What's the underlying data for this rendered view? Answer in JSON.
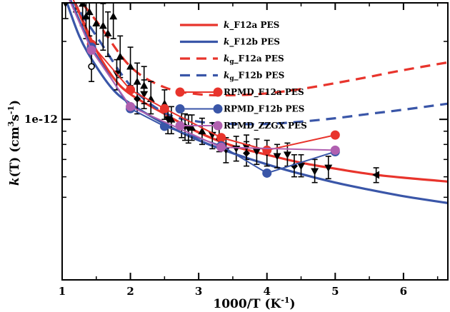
{
  "chart_data": {
    "type": "line",
    "xlabel": "1000/T (K",
    "xlabel_sup": "-1",
    "xlabel_end": ")",
    "ylabel": "k(T) (cm",
    "ylabel_sup1": "3",
    "ylabel_mid": "s",
    "ylabel_sup2": "-1",
    "ylabel_end": ")",
    "xlim": [
      1,
      6.65
    ],
    "x_ticks": [
      1,
      2,
      3,
      4,
      5,
      6
    ],
    "y_tick_labels": [
      {
        "y": 1e-12,
        "label": "1e-12"
      }
    ],
    "ylim_log10": [
      -12.62,
      -11.55
    ],
    "y_scale": "log",
    "colors": {
      "red": "#e8342c",
      "blue": "#3a56a8",
      "purple": "#b060b0",
      "black": "#000000"
    },
    "legend": [
      {
        "id": "kF12a",
        "kind": "solid",
        "color": "#e8342c",
        "prefix": "k",
        "rest": "_F12a PES"
      },
      {
        "id": "kF12b",
        "kind": "solid",
        "color": "#3a56a8",
        "prefix": "k",
        "rest": "_F12b PES"
      },
      {
        "id": "kgF12a",
        "kind": "dash",
        "color": "#e8342c",
        "prefix": "k",
        "sub": "g",
        "rest": "_F12a PES"
      },
      {
        "id": "kgF12b",
        "kind": "dash",
        "color": "#3a56a8",
        "prefix": "k",
        "sub": "g",
        "rest": "_F12b PES"
      },
      {
        "id": "rpF12a",
        "kind": "marker",
        "color": "#e8342c",
        "label": "RPMD_F12a PES"
      },
      {
        "id": "rpF12b",
        "kind": "marker",
        "color": "#3a56a8",
        "label": "RPMD_F12b PES"
      },
      {
        "id": "rpZZGX",
        "kind": "marker",
        "color": "#b060b0",
        "label": "RPMD_ZZGX PES"
      }
    ],
    "series": [
      {
        "id": "kF12a",
        "style": "solid",
        "color": "#e8342c",
        "x": [
          1.0,
          1.25,
          1.5,
          1.75,
          2.0,
          2.5,
          3.0,
          3.5,
          4.0,
          4.5,
          5.0,
          5.5,
          6.0,
          6.65
        ],
        "y": [
          3.7e-12,
          2.6e-12,
          1.85e-12,
          1.45e-12,
          1.25e-12,
          1.05e-12,
          8.9e-13,
          7.9e-13,
          7.3e-13,
          6.8e-13,
          6.45e-13,
          6.15e-13,
          5.95e-13,
          5.75e-13
        ]
      },
      {
        "id": "kF12b",
        "style": "solid",
        "color": "#3a56a8",
        "x": [
          1.0,
          1.25,
          1.5,
          1.75,
          2.0,
          2.5,
          3.0,
          3.5,
          4.0,
          4.5,
          5.0,
          5.5,
          6.0,
          6.65
        ],
        "y": [
          3.2e-12,
          2.1e-12,
          1.6e-12,
          1.3e-12,
          1.15e-12,
          9.6e-13,
          8.3e-13,
          7.4e-13,
          6.7e-13,
          6.15e-13,
          5.7e-13,
          5.35e-13,
          5.05e-13,
          4.75e-13
        ]
      },
      {
        "id": "kgF12a",
        "style": "dash",
        "color": "#e8342c",
        "x": [
          1.0,
          1.5,
          2.0,
          2.5,
          3.0,
          3.5,
          4.0,
          4.5,
          5.0,
          5.5,
          6.0,
          6.65
        ],
        "y": [
          3.5e-12,
          2.4e-12,
          1.6e-12,
          1.33e-12,
          1.25e-12,
          1.24e-12,
          1.26e-12,
          1.31e-12,
          1.38e-12,
          1.46e-12,
          1.55e-12,
          1.66e-12
        ]
      },
      {
        "id": "kgF12b",
        "style": "dash",
        "color": "#3a56a8",
        "x": [
          1.0,
          1.5,
          2.0,
          2.5,
          3.0,
          3.5,
          4.0,
          4.5,
          5.0,
          5.5,
          6.0,
          6.65
        ],
        "y": [
          3.3e-12,
          2.1e-12,
          1.35e-12,
          1.06e-12,
          9.8e-13,
          9.6e-13,
          9.6e-13,
          9.8e-13,
          1.01e-12,
          1.05e-12,
          1.09e-12,
          1.15e-12
        ]
      },
      {
        "id": "rpF12a",
        "style": "marker",
        "color": "#e8342c",
        "x": [
          1.0,
          1.43,
          2.0,
          2.5,
          3.33,
          4.0,
          5.0
        ],
        "y": [
          3.7e-12,
          1.95e-12,
          1.3e-12,
          1.1e-12,
          8.5e-13,
          7.6e-13,
          8.7e-13
        ]
      },
      {
        "id": "rpF12b",
        "style": "marker",
        "color": "#3a56a8",
        "x": [
          1.0,
          1.43,
          2.0,
          2.5,
          3.33,
          4.0,
          5.0
        ],
        "y": [
          3.45e-12,
          1.9e-12,
          1.1e-12,
          9.4e-13,
          7.9e-13,
          6.2e-13,
          7.5e-13
        ]
      },
      {
        "id": "rpZZGX",
        "style": "marker",
        "color": "#b060b0",
        "x": [
          1.0,
          1.43,
          2.0,
          3.33,
          5.0
        ],
        "y": [
          3.35e-12,
          1.85e-12,
          1.12e-12,
          7.8e-13,
          7.6e-13
        ]
      }
    ],
    "experimental": {
      "circles": [
        {
          "x": 1.43,
          "y": 1.6e-12,
          "err": [
            1.4e-12,
            1.85e-12
          ]
        }
      ],
      "triangles_up": [
        {
          "x": 1.2,
          "y": 3.1e-12,
          "err": [
            2.6e-12,
            3.5e-12
          ]
        },
        {
          "x": 1.3,
          "y": 2.8e-12,
          "err": [
            2.3e-12,
            3.3e-12
          ]
        },
        {
          "x": 1.35,
          "y": 2.5e-12,
          "err": [
            2.05e-12,
            3e-12
          ]
        },
        {
          "x": 1.4,
          "y": 2.6e-12,
          "err": [
            2.1e-12,
            3.2e-12
          ]
        },
        {
          "x": 1.5,
          "y": 2.35e-12,
          "err": [
            1.95e-12,
            2.85e-12
          ]
        },
        {
          "x": 1.6,
          "y": 2.3e-12,
          "err": [
            1.85e-12,
            2.8e-12
          ]
        },
        {
          "x": 1.67,
          "y": 2.15e-12,
          "err": [
            1.75e-12,
            2.6e-12
          ]
        },
        {
          "x": 1.75,
          "y": 2.5e-12,
          "err": [
            2.05e-12,
            3e-12
          ]
        },
        {
          "x": 1.85,
          "y": 1.75e-12,
          "err": [
            1.45e-12,
            2.1e-12
          ]
        },
        {
          "x": 2.0,
          "y": 1.6e-12,
          "err": [
            1.35e-12,
            1.9e-12
          ]
        },
        {
          "x": 2.1,
          "y": 1.4e-12,
          "err": [
            1.2e-12,
            1.65e-12
          ]
        },
        {
          "x": 2.2,
          "y": 1.35e-12,
          "err": [
            1.15e-12,
            1.6e-12
          ]
        },
        {
          "x": 2.3,
          "y": 1.2e-12,
          "err": [
            1.05e-12,
            1.4e-12
          ]
        },
        {
          "x": 2.5,
          "y": 1.15e-12,
          "err": [
            1e-12,
            1.3e-12
          ]
        },
        {
          "x": 2.6,
          "y": 1e-12,
          "err": [
            8.8e-13,
            1.12e-12
          ]
        },
        {
          "x": 2.75,
          "y": 9.6e-13,
          "err": [
            8.5e-13,
            1.08e-12
          ]
        },
        {
          "x": 2.9,
          "y": 9.3e-13,
          "err": [
            8.3e-13,
            1.04e-12
          ]
        },
        {
          "x": 3.05,
          "y": 9e-13,
          "err": [
            8e-13,
            1.01e-12
          ]
        }
      ],
      "triangles_down": [
        {
          "x": 1.05,
          "y": 2.8e-12,
          "err": [
            2.45e-12,
            3.1e-12
          ]
        },
        {
          "x": 1.8,
          "y": 1.5e-12,
          "err": [
            1.3e-12,
            1.7e-12
          ]
        },
        {
          "x": 2.2,
          "y": 1.25e-12,
          "err": [
            1.1e-12,
            1.42e-12
          ]
        },
        {
          "x": 2.55,
          "y": 1e-12,
          "err": [
            8.8e-13,
            1.12e-12
          ]
        },
        {
          "x": 2.85,
          "y": 9.2e-13,
          "err": [
            8.1e-13,
            1.04e-12
          ]
        },
        {
          "x": 3.2,
          "y": 8.7e-13,
          "err": [
            7.7e-13,
            9.7e-13
          ]
        },
        {
          "x": 3.4,
          "y": 7.6e-13,
          "err": [
            6.8e-13,
            8.5e-13
          ]
        },
        {
          "x": 3.55,
          "y": 7.7e-13,
          "err": [
            6.9e-13,
            8.6e-13
          ]
        },
        {
          "x": 3.7,
          "y": 7.8e-13,
          "err": [
            7e-13,
            8.7e-13
          ]
        },
        {
          "x": 3.85,
          "y": 7.5e-13,
          "err": [
            6.7e-13,
            8.4e-13
          ]
        },
        {
          "x": 4.0,
          "y": 7.4e-13,
          "err": [
            6.6e-13,
            8.3e-13
          ]
        },
        {
          "x": 4.15,
          "y": 7.2e-13,
          "err": [
            6.5e-13,
            8e-13
          ]
        },
        {
          "x": 4.3,
          "y": 7.3e-13,
          "err": [
            6.6e-13,
            8.1e-13
          ]
        },
        {
          "x": 4.5,
          "y": 6.6e-13,
          "err": [
            6e-13,
            7.3e-13
          ]
        },
        {
          "x": 4.7,
          "y": 6.3e-13,
          "err": [
            5.7e-13,
            7e-13
          ]
        },
        {
          "x": 4.9,
          "y": 6.5e-13,
          "err": [
            5.9e-13,
            7.2e-13
          ]
        }
      ],
      "diamonds": [
        {
          "x": 2.1,
          "y": 1.2e-12,
          "err": [
            1.05e-12,
            1.37e-12
          ]
        },
        {
          "x": 2.8,
          "y": 9.4e-13,
          "err": [
            8.3e-13,
            1.05e-12
          ]
        },
        {
          "x": 3.3,
          "y": 8.4e-13,
          "err": [
            7.5e-13,
            9.4e-13
          ]
        },
        {
          "x": 3.7,
          "y": 7.4e-13,
          "err": [
            6.6e-13,
            8.2e-13
          ]
        },
        {
          "x": 4.4,
          "y": 6.6e-13,
          "err": [
            6e-13,
            7.3e-13
          ]
        }
      ],
      "left_triangles": [
        {
          "x": 5.6,
          "y": 6.1e-13,
          "err": [
            5.7e-13,
            6.5e-13
          ]
        }
      ]
    }
  }
}
